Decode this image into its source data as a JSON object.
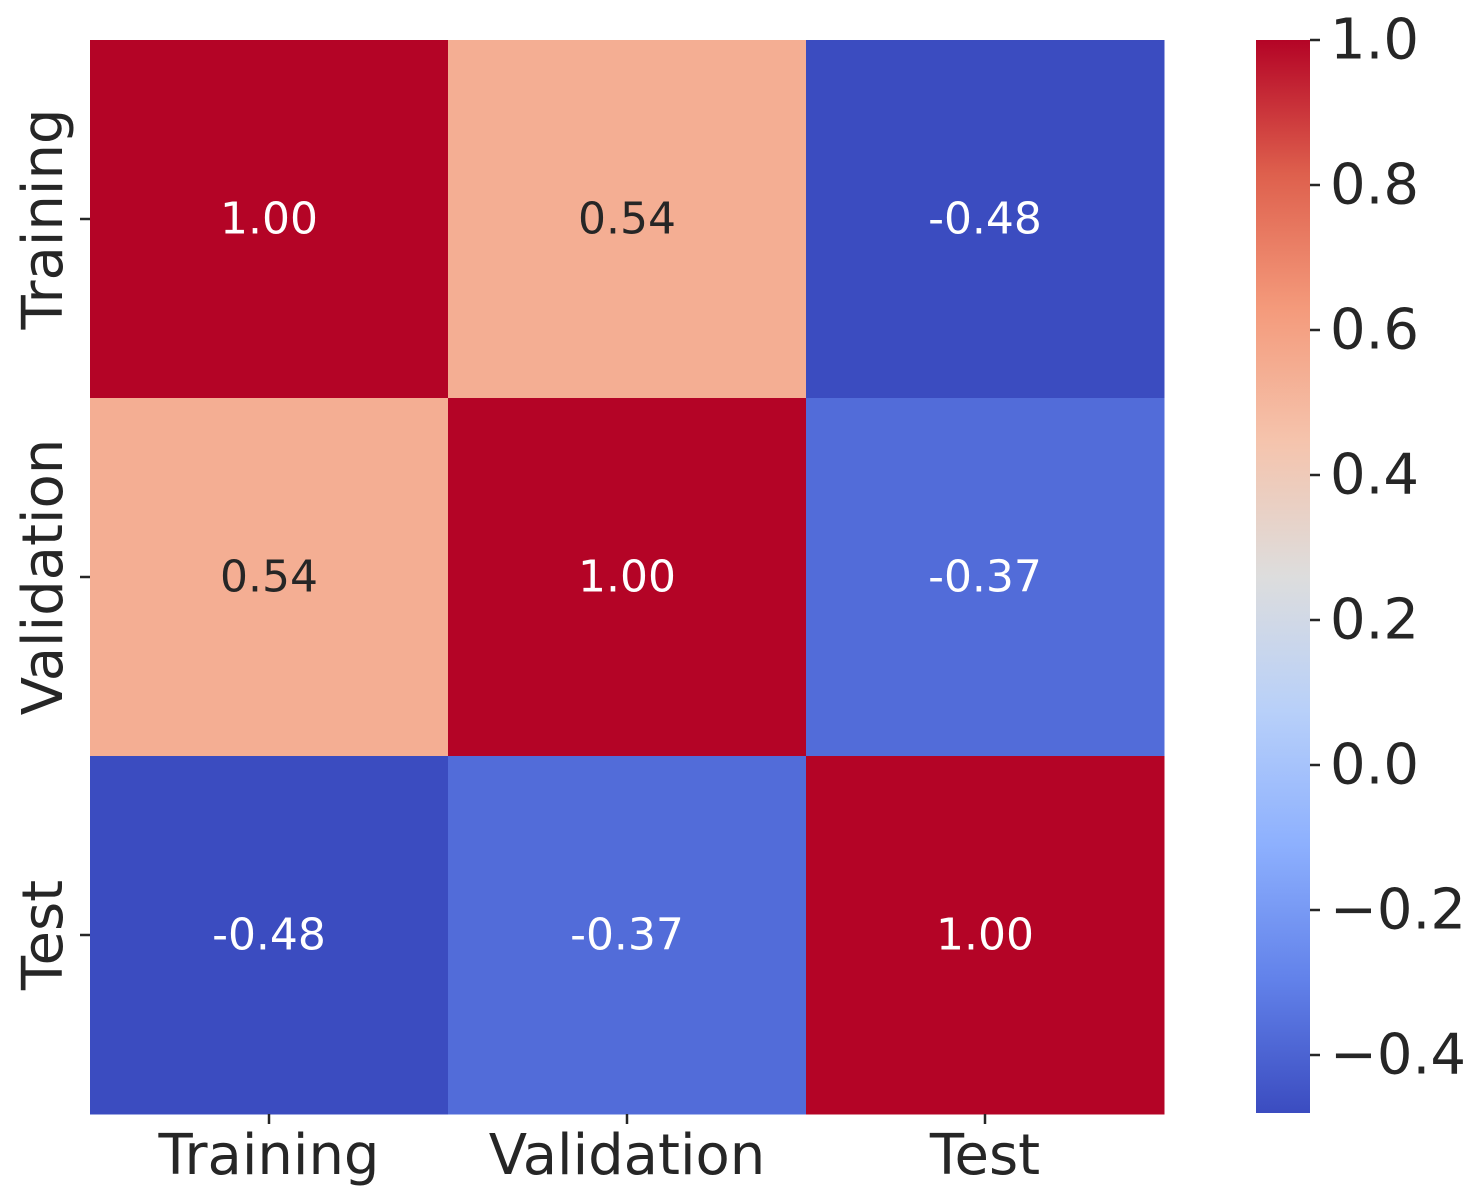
{
  "chart_data": {
    "type": "heatmap",
    "title": "",
    "xlabel": "",
    "ylabel": "",
    "x_categories": [
      "Training",
      "Validation",
      "Test"
    ],
    "y_categories": [
      "Training",
      "Validation",
      "Test"
    ],
    "values": [
      [
        1.0,
        0.54,
        -0.48
      ],
      [
        0.54,
        1.0,
        -0.37
      ],
      [
        -0.48,
        -0.37,
        1.0
      ]
    ],
    "value_format": "0.00",
    "colormap": "coolwarm",
    "colorbar": {
      "range": [
        -0.48,
        1.0
      ],
      "ticks": [
        1.0,
        0.8,
        0.6,
        0.4,
        0.2,
        0.0,
        -0.2,
        -0.4
      ],
      "tick_labels": [
        "1.0",
        "0.8",
        "0.6",
        "0.4",
        "0.2",
        "0.0",
        "−0.2",
        "−0.4"
      ]
    }
  }
}
